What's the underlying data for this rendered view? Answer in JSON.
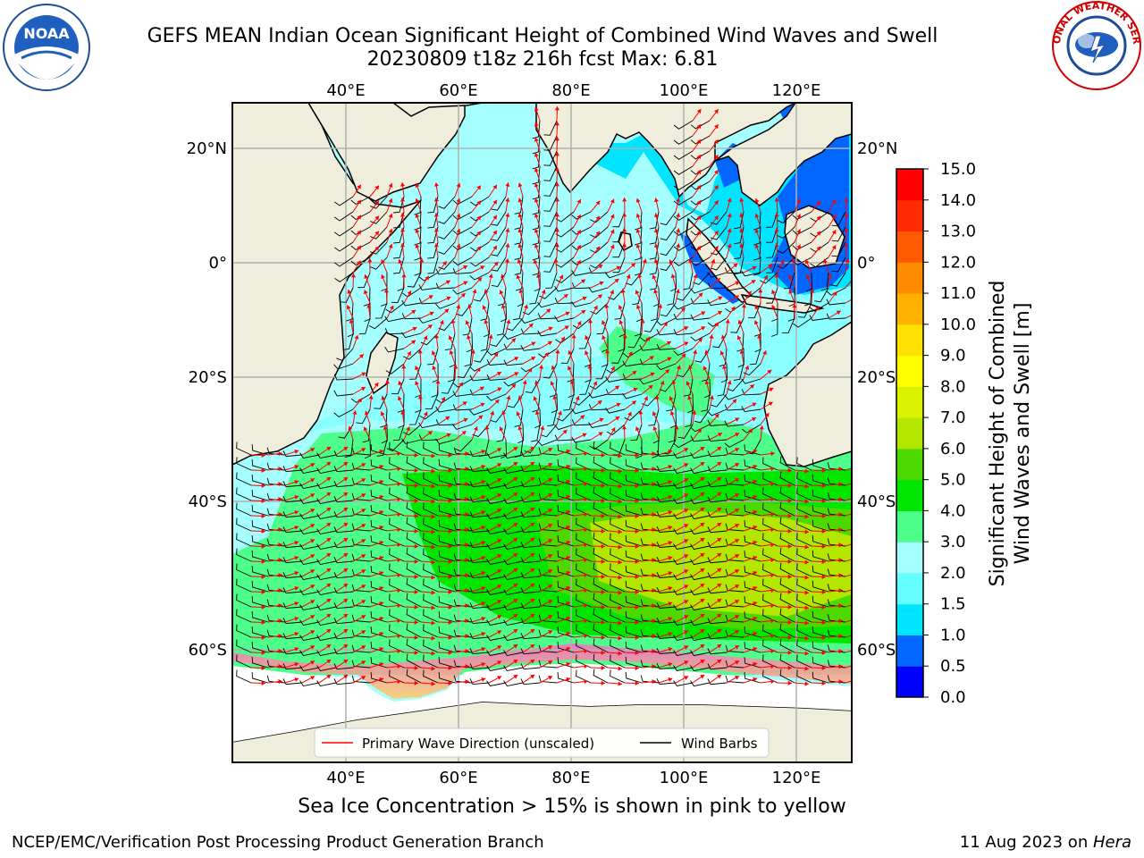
{
  "title": {
    "line1": "GEFS MEAN Indian Ocean Significant Height of Combined Wind Waves and Swell",
    "line2": "20230809 t18z 216h fcst   Max: 6.81"
  },
  "logos": {
    "left": "noaa-logo",
    "left_text": "NOAA",
    "right": "national-weather-service-logo",
    "right_text": "NATIONAL WEATHER SERVICE"
  },
  "map": {
    "lon_ticks_top": [
      "40°E",
      "60°E",
      "80°E",
      "100°E",
      "120°E"
    ],
    "lon_ticks_bottom": [
      "40°E",
      "60°E",
      "80°E",
      "100°E",
      "120°E"
    ],
    "lat_ticks_left": [
      "20°N",
      "0°",
      "20°S",
      "40°S",
      "60°S"
    ],
    "lat_ticks_right": [
      "20°N",
      "0°",
      "20°S",
      "40°S",
      "60°S"
    ],
    "colors": {
      "land": "#efeedd",
      "ice": "#ffffff",
      "grid": "#b0b0b0",
      "wave_arrow": "#ff0000",
      "barb": "#000000"
    }
  },
  "legend": {
    "wave_direction": "Primary Wave Direction (unscaled)",
    "wind_barbs": "Wind Barbs"
  },
  "colorbar": {
    "label_line1": "Significant Height of Combined",
    "label_line2": "Wind Waves and Swell [m]",
    "ticks": [
      "0.0",
      "0.5",
      "1.0",
      "1.5",
      "2.0",
      "3.0",
      "4.0",
      "5.0",
      "6.0",
      "7.0",
      "8.0",
      "9.0",
      "10.0",
      "11.0",
      "12.0",
      "13.0",
      "14.0",
      "15.0"
    ],
    "colors": [
      "#0000ff",
      "#0066ff",
      "#00e5ff",
      "#66ffff",
      "#a6ffff",
      "#4dff8a",
      "#00e600",
      "#4cd900",
      "#b3e600",
      "#d9f200",
      "#ffff00",
      "#ffe000",
      "#ffb300",
      "#ff8c00",
      "#ff5a00",
      "#ff2a00",
      "#ff0000"
    ]
  },
  "caption": "Sea Ice Concentration > 15% is shown in pink to yellow",
  "footer": {
    "left": "NCEP/EMC/Verification Post Processing Product Generation Branch",
    "right_date": "11 Aug 2023 on ",
    "right_host": "Hera"
  }
}
